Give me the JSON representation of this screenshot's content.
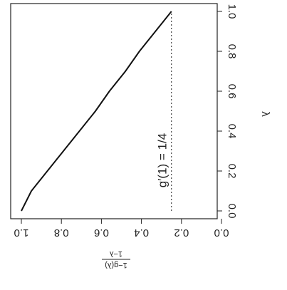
{
  "chart_data": {
    "type": "line",
    "xlabel": "λ",
    "ylabel": [
      "1−g(λ)",
      "1−λ"
    ],
    "annotation": "g′(1) = 1/4",
    "x": [
      0,
      0.1,
      0.2,
      0.3,
      0.4,
      0.5,
      0.6,
      0.7,
      0.8,
      0.9,
      1.0
    ],
    "series": [
      {
        "color": "#111111",
        "values": [
          1.0,
          0.95,
          0.87,
          0.79,
          0.71,
          0.63,
          0.56,
          0.48,
          0.41,
          0.33,
          0.25
        ]
      }
    ],
    "reference_value": 0.25,
    "xlim": [
      0,
      1
    ],
    "ylim": [
      0,
      1
    ],
    "xticks": [
      {
        "value": 0,
        "label": "0.0"
      },
      0.2,
      0.4,
      0.6,
      0.8,
      {
        "value": 1,
        "label": "1.0"
      }
    ],
    "yticks": [
      {
        "value": 0,
        "label": "0.0"
      },
      0.2,
      0.4,
      0.6,
      0.8,
      {
        "value": 1,
        "label": "1.0"
      }
    ]
  }
}
